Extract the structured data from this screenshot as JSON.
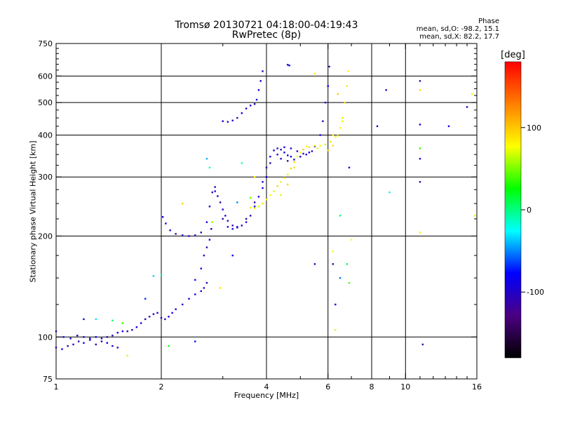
{
  "title": {
    "line1": "Tromsø 20130721 04:18:00-04:19:43",
    "line2": "RwPretec (8p)"
  },
  "phase_stats": {
    "heading": "Phase",
    "o_line": "mean, sd,O: -98.2, 15.1",
    "x_line": "mean, sd,X:  82.2, 17.7"
  },
  "chart_data": {
    "type": "scatter",
    "title": "Tromsø 20130721 04:18:00-04:19:43",
    "subtitle": "RwPretec (8p)",
    "xlabel": "Frequency [MHz]",
    "ylabel": "Stationary phase Virtual Height [km]",
    "xscale": "log",
    "yscale": "log",
    "xlim": [
      1,
      16
    ],
    "ylim": [
      75,
      750
    ],
    "x_ticks": [
      1,
      2,
      4,
      6,
      8,
      10,
      16
    ],
    "y_ticks": [
      75,
      100,
      200,
      300,
      400,
      500,
      600,
      750
    ],
    "grid_x": [
      2,
      4,
      6,
      8,
      10
    ],
    "grid_y": [
      100,
      200,
      300,
      400,
      500,
      600
    ],
    "grid": true,
    "colorbar": {
      "label": "[deg]",
      "ticks": [
        100,
        0,
        -100
      ],
      "range": [
        -180,
        180
      ],
      "colors": [
        "#000000",
        "#4b0082",
        "#0000ff",
        "#00ffff",
        "#00ff00",
        "#ffff00",
        "#ff7f00",
        "#ff0000"
      ]
    },
    "series": [
      {
        "name": "O-mode",
        "phase": -98,
        "points": [
          [
            1.0,
            93
          ],
          [
            1.04,
            92
          ],
          [
            1.08,
            94
          ],
          [
            1.12,
            95
          ],
          [
            1.16,
            97
          ],
          [
            1.2,
            96
          ],
          [
            1.25,
            98
          ],
          [
            1.3,
            95
          ],
          [
            1.35,
            97
          ],
          [
            1.4,
            96
          ],
          [
            1.45,
            94
          ],
          [
            1.5,
            93
          ],
          [
            1.0,
            104
          ],
          [
            1.05,
            100
          ],
          [
            1.1,
            99
          ],
          [
            1.15,
            101
          ],
          [
            1.2,
            100
          ],
          [
            1.25,
            99
          ],
          [
            1.3,
            100
          ],
          [
            1.35,
            99
          ],
          [
            1.4,
            100
          ],
          [
            1.45,
            101
          ],
          [
            1.5,
            103
          ],
          [
            1.55,
            104
          ],
          [
            1.6,
            104
          ],
          [
            1.65,
            105
          ],
          [
            1.7,
            107
          ],
          [
            1.75,
            110
          ],
          [
            1.8,
            113
          ],
          [
            1.85,
            115
          ],
          [
            1.9,
            117
          ],
          [
            1.95,
            118
          ],
          [
            2.0,
            114
          ],
          [
            2.05,
            113
          ],
          [
            2.1,
            115
          ],
          [
            2.15,
            118
          ],
          [
            2.2,
            121
          ],
          [
            2.3,
            125
          ],
          [
            2.4,
            130
          ],
          [
            2.5,
            134
          ],
          [
            2.6,
            137
          ],
          [
            2.65,
            140
          ],
          [
            2.7,
            145
          ],
          [
            2.02,
            228
          ],
          [
            2.06,
            218
          ],
          [
            2.12,
            208
          ],
          [
            2.2,
            203
          ],
          [
            2.3,
            201
          ],
          [
            2.4,
            200
          ],
          [
            2.5,
            201
          ],
          [
            2.6,
            205
          ],
          [
            2.7,
            220
          ],
          [
            2.75,
            245
          ],
          [
            2.8,
            270
          ],
          [
            2.85,
            280
          ],
          [
            2.5,
            148
          ],
          [
            2.6,
            160
          ],
          [
            2.65,
            175
          ],
          [
            2.7,
            185
          ],
          [
            2.75,
            195
          ],
          [
            2.78,
            210
          ],
          [
            2.85,
            272
          ],
          [
            2.9,
            263
          ],
          [
            2.95,
            252
          ],
          [
            3.0,
            240
          ],
          [
            3.05,
            230
          ],
          [
            3.1,
            222
          ],
          [
            3.2,
            215
          ],
          [
            3.3,
            213
          ],
          [
            3.4,
            215
          ],
          [
            3.5,
            220
          ],
          [
            3.6,
            230
          ],
          [
            3.7,
            245
          ],
          [
            3.8,
            262
          ],
          [
            3.9,
            290
          ],
          [
            4.0,
            320
          ],
          [
            4.1,
            345
          ],
          [
            4.2,
            360
          ],
          [
            4.3,
            365
          ],
          [
            4.4,
            362
          ],
          [
            4.5,
            355
          ],
          [
            4.6,
            348
          ],
          [
            4.7,
            345
          ],
          [
            3.0,
            225
          ],
          [
            3.1,
            213
          ],
          [
            3.2,
            210
          ],
          [
            3.3,
            212
          ],
          [
            3.5,
            225
          ],
          [
            3.7,
            252
          ],
          [
            3.9,
            278
          ],
          [
            4.0,
            300
          ],
          [
            4.1,
            330
          ],
          [
            4.3,
            350
          ],
          [
            4.5,
            368
          ],
          [
            4.7,
            365
          ],
          [
            4.9,
            358
          ],
          [
            5.1,
            352
          ],
          [
            5.3,
            355
          ],
          [
            5.5,
            370
          ],
          [
            5.7,
            400
          ],
          [
            5.8,
            440
          ],
          [
            5.9,
            500
          ],
          [
            6.0,
            560
          ],
          [
            6.05,
            640
          ],
          [
            4.4,
            340
          ],
          [
            4.6,
            335
          ],
          [
            4.8,
            338
          ],
          [
            5.0,
            345
          ],
          [
            5.2,
            350
          ],
          [
            5.4,
            358
          ],
          [
            3.0,
            440
          ],
          [
            3.1,
            438
          ],
          [
            3.2,
            442
          ],
          [
            3.3,
            450
          ],
          [
            3.4,
            465
          ],
          [
            3.5,
            480
          ],
          [
            3.6,
            490
          ],
          [
            3.7,
            495
          ],
          [
            3.75,
            510
          ],
          [
            3.8,
            545
          ],
          [
            3.85,
            580
          ],
          [
            3.9,
            620
          ],
          [
            4.6,
            648
          ],
          [
            4.65,
            645
          ],
          [
            8.3,
            425
          ],
          [
            8.8,
            545
          ],
          [
            11.0,
            580
          ],
          [
            11.0,
            430
          ],
          [
            11.0,
            340
          ],
          [
            11.0,
            290
          ],
          [
            11.2,
            95
          ],
          [
            13.3,
            425
          ],
          [
            15.0,
            485
          ],
          [
            6.2,
            165
          ],
          [
            5.5,
            165
          ]
        ]
      },
      {
        "name": "X-mode",
        "phase": 82,
        "points": [
          [
            3.6,
            243
          ],
          [
            3.7,
            242
          ],
          [
            3.8,
            245
          ],
          [
            3.9,
            250
          ],
          [
            4.0,
            257
          ],
          [
            4.1,
            265
          ],
          [
            4.2,
            272
          ],
          [
            4.3,
            282
          ],
          [
            4.4,
            290
          ],
          [
            4.5,
            298
          ],
          [
            4.6,
            305
          ],
          [
            4.7,
            318
          ],
          [
            4.8,
            332
          ],
          [
            4.9,
            345
          ],
          [
            5.0,
            355
          ],
          [
            5.1,
            362
          ],
          [
            5.3,
            368
          ],
          [
            5.5,
            372
          ],
          [
            5.7,
            372
          ],
          [
            5.9,
            375
          ],
          [
            6.1,
            382
          ],
          [
            6.3,
            395
          ],
          [
            6.5,
            420
          ],
          [
            6.6,
            450
          ],
          [
            6.7,
            500
          ],
          [
            6.8,
            560
          ],
          [
            6.85,
            620
          ],
          [
            4.4,
            265
          ],
          [
            4.6,
            285
          ],
          [
            4.8,
            320
          ],
          [
            5.2,
            370
          ],
          [
            5.6,
            365
          ],
          [
            6.0,
            360
          ],
          [
            6.2,
            372
          ],
          [
            6.4,
            398
          ],
          [
            6.6,
            440
          ],
          [
            6.4,
            530
          ],
          [
            5.5,
            610
          ],
          [
            6.2,
            400
          ],
          [
            15.5,
            530
          ],
          [
            15.8,
            230
          ],
          [
            11.0,
            545
          ],
          [
            11.0,
            205
          ],
          [
            6.2,
            180
          ],
          [
            6.3,
            105
          ]
        ]
      },
      {
        "name": "scattered",
        "phase": 0,
        "points": [
          [
            1.2,
            113
          ],
          [
            1.3,
            113
          ],
          [
            1.45,
            112
          ],
          [
            1.55,
            110
          ],
          [
            1.6,
            88
          ],
          [
            1.8,
            130
          ],
          [
            1.9,
            152
          ],
          [
            2.0,
            153
          ],
          [
            2.1,
            94
          ],
          [
            2.3,
            250
          ],
          [
            2.5,
            97
          ],
          [
            2.7,
            340
          ],
          [
            2.75,
            320
          ],
          [
            2.8,
            220
          ],
          [
            2.95,
            140
          ],
          [
            3.2,
            175
          ],
          [
            3.3,
            252
          ],
          [
            3.4,
            330
          ],
          [
            3.6,
            260
          ],
          [
            3.7,
            300
          ],
          [
            6.3,
            125
          ],
          [
            6.5,
            150
          ],
          [
            6.8,
            165
          ],
          [
            6.9,
            145
          ],
          [
            7.0,
            195
          ],
          [
            6.9,
            320
          ],
          [
            9.0,
            270
          ],
          [
            6.5,
            230
          ],
          [
            11.0,
            365
          ]
        ]
      }
    ]
  }
}
